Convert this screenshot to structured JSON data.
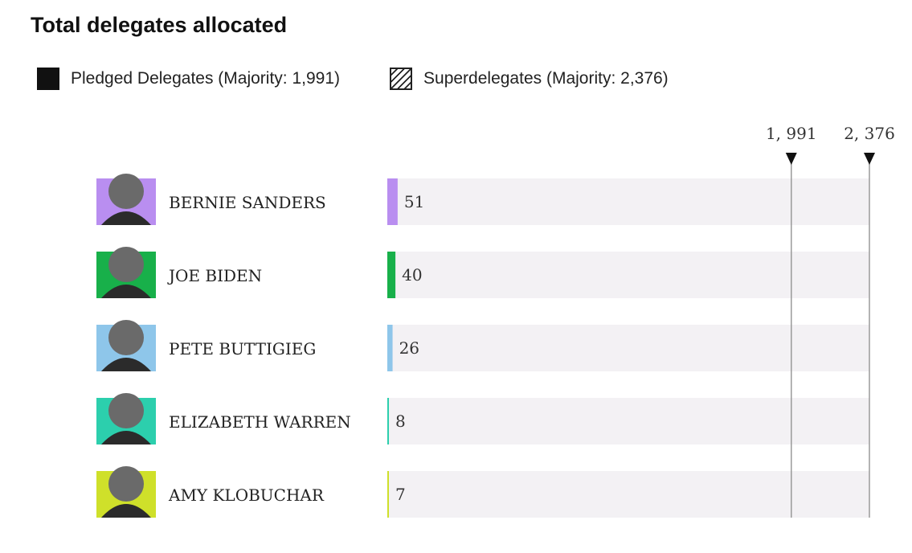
{
  "chart_data": {
    "type": "bar",
    "title": "Total delegates allocated",
    "legend": [
      {
        "name": "Pledged Delegates (Majority: 1,991)",
        "style": "solid"
      },
      {
        "name": "Superdelegates (Majority: 2,376)",
        "style": "hatch"
      }
    ],
    "categories": [
      "BERNIE SANDERS",
      "JOE BIDEN",
      "PETE BUTTIGIEG",
      "ELIZABETH WARREN",
      "AMY KLOBUCHAR"
    ],
    "values": [
      51,
      40,
      26,
      8,
      7
    ],
    "colors": [
      "#b98ef0",
      "#18b04a",
      "#8ec6ea",
      "#2ccfad",
      "#cfe02a"
    ],
    "xlim": [
      0,
      2376
    ],
    "markers": [
      {
        "label": "1, 991",
        "value": 1991
      },
      {
        "label": "2, 376",
        "value": 2376
      }
    ],
    "legend_placement": "top-left",
    "grid": false
  }
}
